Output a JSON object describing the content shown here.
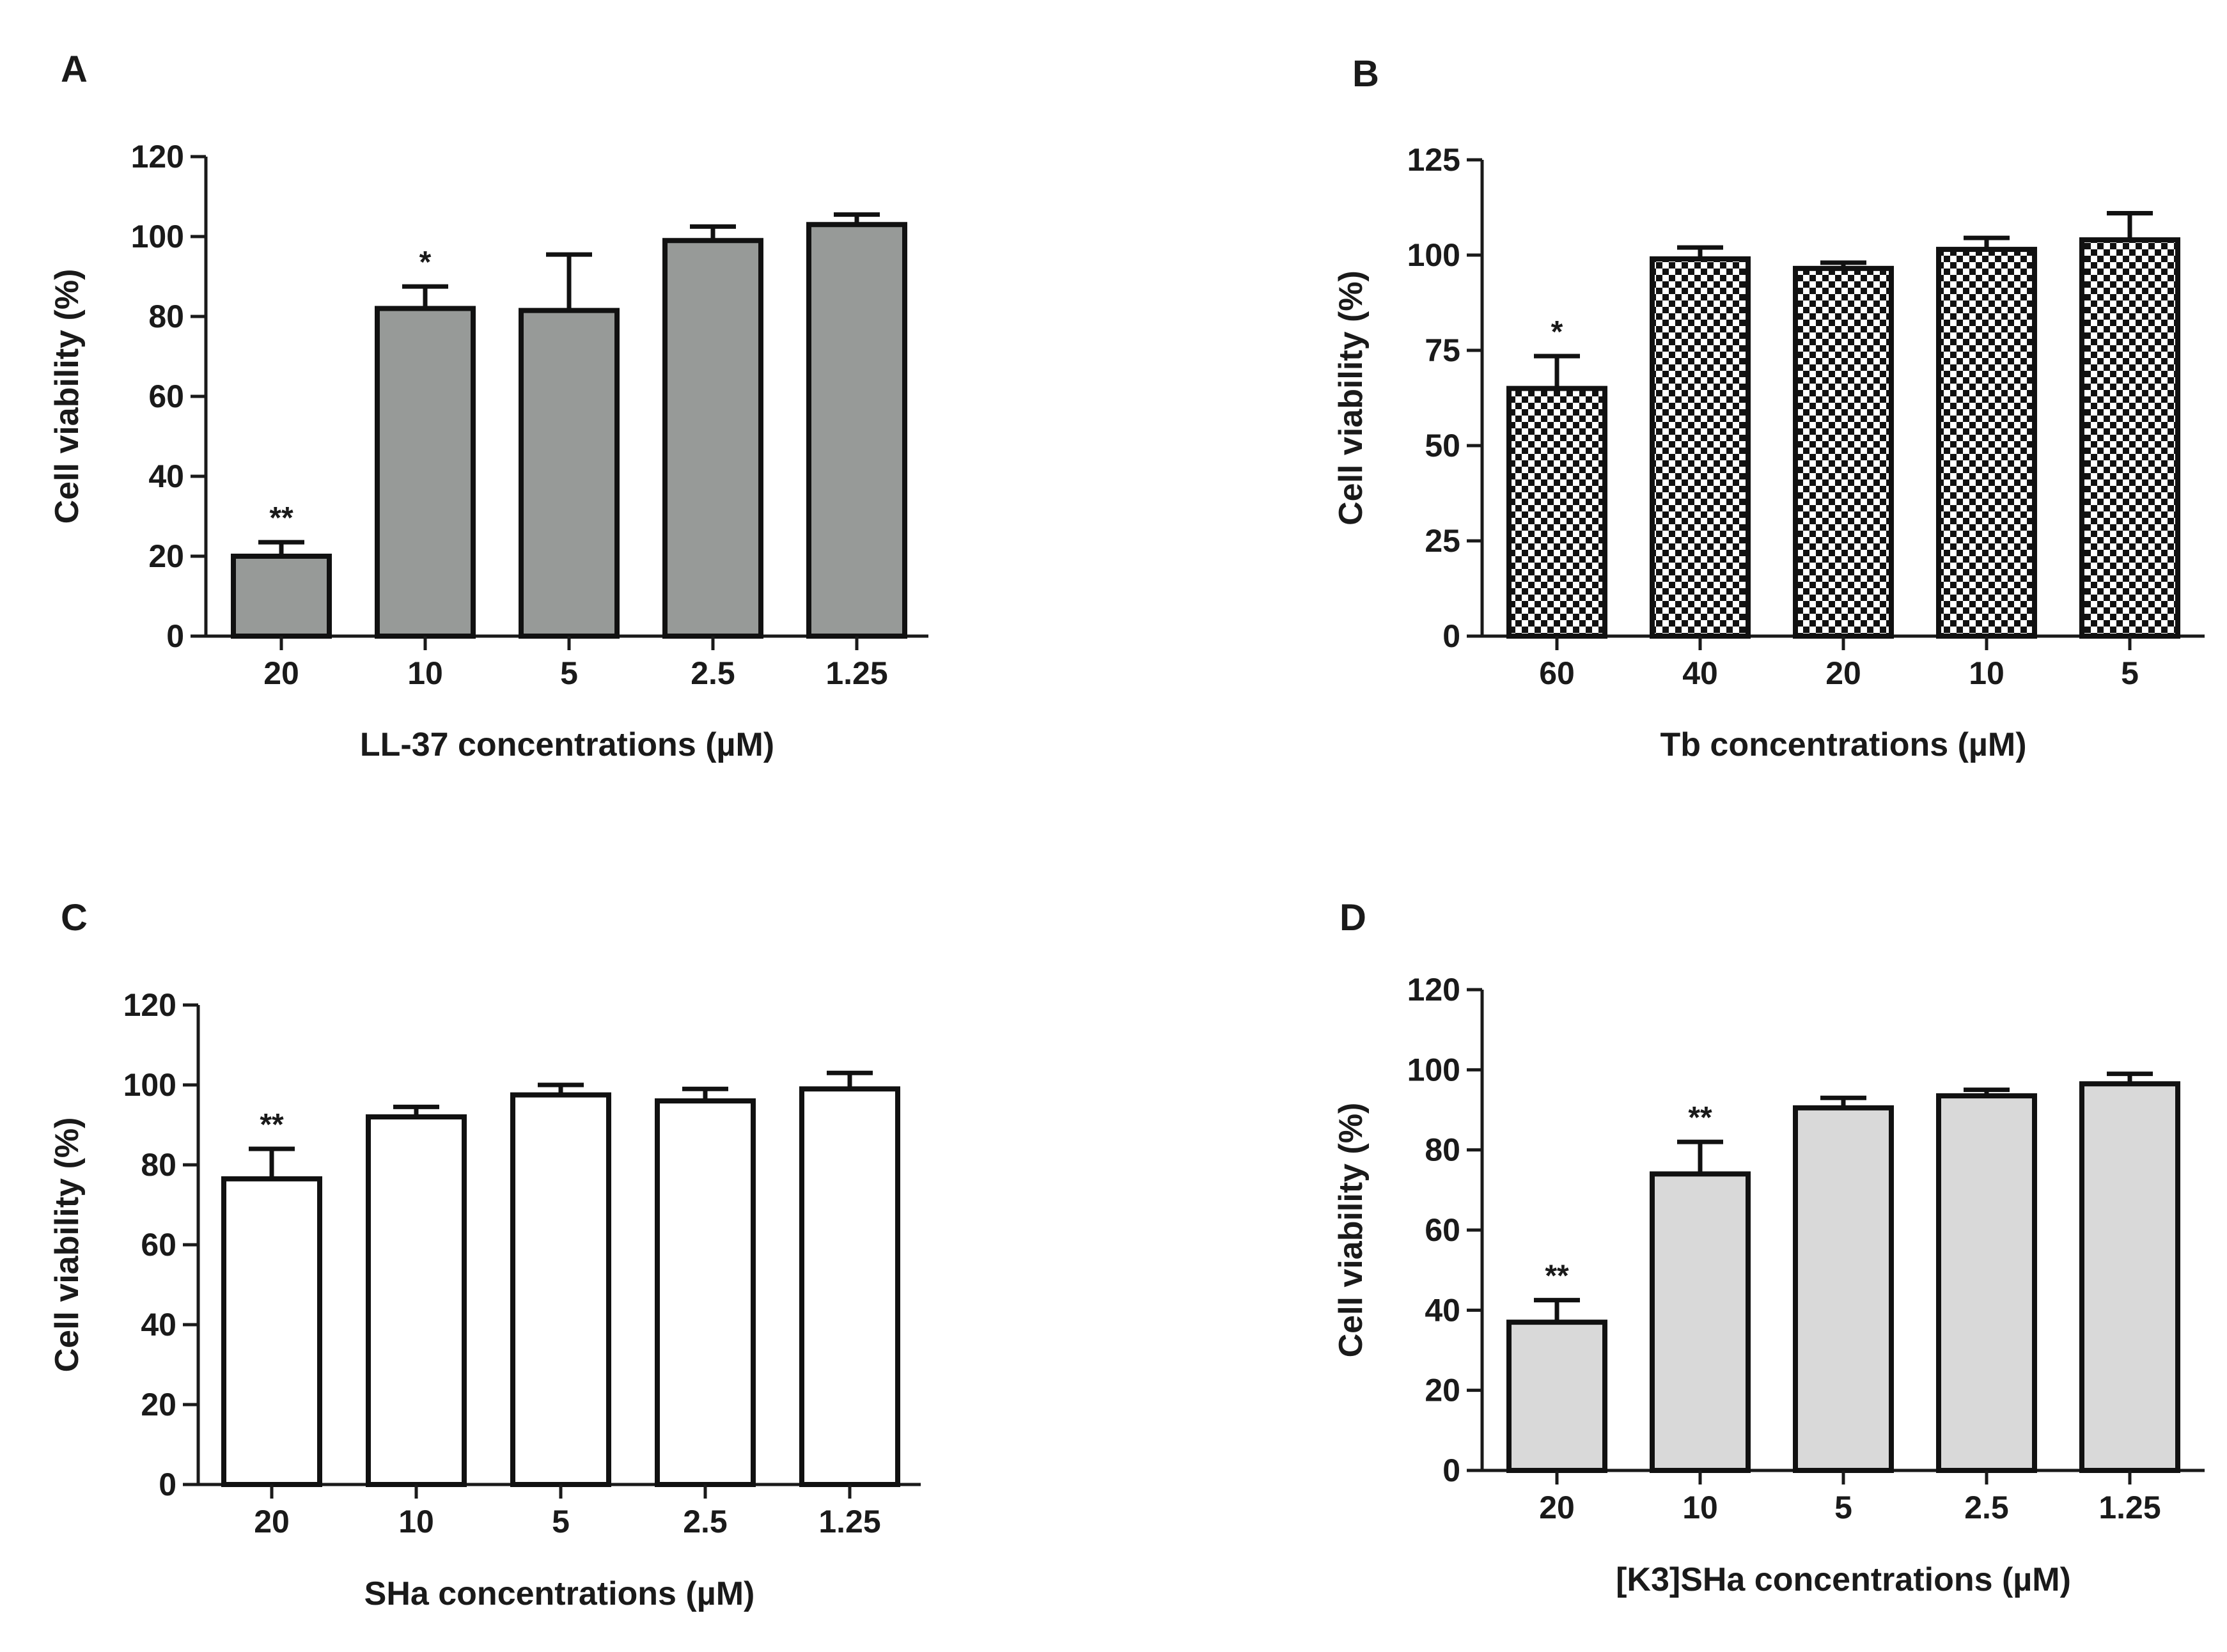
{
  "chart_data": [
    {
      "panel": "A",
      "type": "bar",
      "categories": [
        "20",
        "10",
        "5",
        "2.5",
        "1.25"
      ],
      "values": [
        20,
        82,
        81.5,
        99,
        103
      ],
      "errors": [
        3.5,
        5.5,
        14,
        3.5,
        2.5
      ],
      "significance": [
        "**",
        "*",
        "",
        "",
        ""
      ],
      "xlabel": "LL-37 concentrations (µM)",
      "ylabel": "Cell viability (%)",
      "ylim": [
        0,
        120
      ],
      "yticks": [
        0,
        20,
        40,
        60,
        80,
        100,
        120
      ],
      "fill": "#979a98",
      "pattern": "solid"
    },
    {
      "panel": "B",
      "type": "bar",
      "categories": [
        "60",
        "40",
        "20",
        "10",
        "5"
      ],
      "values": [
        65,
        99,
        96.5,
        101.5,
        104
      ],
      "errors": [
        8.5,
        3,
        1.5,
        3,
        7
      ],
      "significance": [
        "*",
        "",
        "",
        "",
        ""
      ],
      "xlabel": "Tb concentrations (µM)",
      "ylabel": "Cell viability (%)",
      "ylim": [
        0,
        125
      ],
      "yticks": [
        0,
        25,
        50,
        75,
        100,
        125
      ],
      "fill": "#ffffff",
      "pattern": "checker"
    },
    {
      "panel": "C",
      "type": "bar",
      "categories": [
        "20",
        "10",
        "5",
        "2.5",
        "1.25"
      ],
      "values": [
        76.5,
        92,
        97.5,
        96,
        99
      ],
      "errors": [
        7.5,
        2.5,
        2.5,
        3,
        4
      ],
      "significance": [
        "**",
        "",
        "",
        "",
        ""
      ],
      "xlabel": "SHa concentrations (µM)",
      "ylabel": "Cell viability (%)",
      "ylim": [
        0,
        120
      ],
      "yticks": [
        0,
        20,
        40,
        60,
        80,
        100,
        120
      ],
      "fill": "#ffffff",
      "pattern": "solid"
    },
    {
      "panel": "D",
      "type": "bar",
      "categories": [
        "20",
        "10",
        "5",
        "2.5",
        "1.25"
      ],
      "values": [
        37,
        74,
        90.5,
        93.5,
        96.5
      ],
      "errors": [
        5.5,
        8,
        2.5,
        1.5,
        2.5
      ],
      "significance": [
        "**",
        "**",
        "",
        "",
        ""
      ],
      "xlabel": "[K3]SHa concentrations (µM)",
      "ylabel": "Cell viability (%)",
      "ylim": [
        0,
        120
      ],
      "yticks": [
        0,
        20,
        40,
        60,
        80,
        100,
        120
      ],
      "fill": "#d9d9d9",
      "pattern": "solid"
    }
  ]
}
